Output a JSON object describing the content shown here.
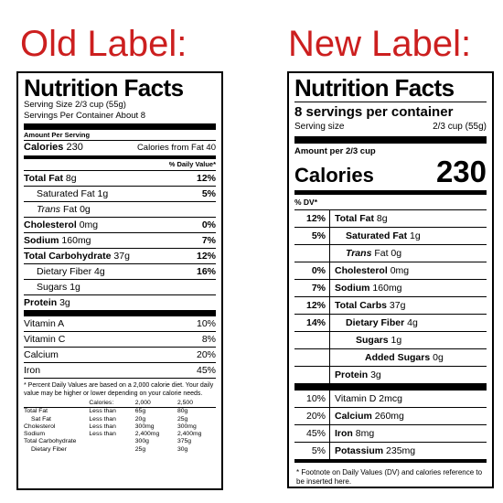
{
  "headings": {
    "old": "Old Label:",
    "new": "New Label:"
  },
  "colors": {
    "heading": "#cc1f1f"
  },
  "old_label": {
    "title": "Nutrition Facts",
    "serving_size": "Serving Size 2/3 cup (55g)",
    "servings_per_container": "Servings Per Container About 8",
    "amount_per_serving": "Amount Per Serving",
    "calories_label": "Calories",
    "calories_value": "230",
    "calories_from_fat": "Calories from Fat 40",
    "daily_value_header": "% Daily Value*",
    "nutrients": [
      {
        "name": "Total Fat",
        "amount": "8g",
        "dv": "12%"
      },
      {
        "name": "Saturated Fat",
        "amount": "1g",
        "dv": "5%"
      },
      {
        "name": "Trans",
        "amount": "Fat 0g",
        "dv": ""
      },
      {
        "name": "Cholesterol",
        "amount": "0mg",
        "dv": "0%"
      },
      {
        "name": "Sodium",
        "amount": "160mg",
        "dv": "7%"
      },
      {
        "name": "Total Carbohydrate",
        "amount": "37g",
        "dv": "12%"
      },
      {
        "name": "Dietary Fiber",
        "amount": "4g",
        "dv": "16%"
      },
      {
        "name": "Sugars",
        "amount": "1g",
        "dv": ""
      },
      {
        "name": "Protein",
        "amount": "3g",
        "dv": ""
      }
    ],
    "vitamins": [
      {
        "name": "Vitamin A",
        "dv": "10%"
      },
      {
        "name": "Vitamin C",
        "dv": "8%"
      },
      {
        "name": "Calcium",
        "dv": "20%"
      },
      {
        "name": "Iron",
        "dv": "45%"
      }
    ],
    "footnote": "* Percent Daily Values are based on a 2,000 calorie diet. Your daily value may be higher or lower depending on your calorie needs.",
    "footnote_table": {
      "header": [
        "",
        "Calories:",
        "2,000",
        "2,500"
      ],
      "rows": [
        [
          "Total Fat",
          "Less than",
          "65g",
          "80g"
        ],
        [
          "Sat Fat",
          "Less than",
          "20g",
          "25g"
        ],
        [
          "Cholesterol",
          "Less than",
          "300mg",
          "300mg"
        ],
        [
          "Sodium",
          "Less than",
          "2,400mg",
          "2,400mg"
        ],
        [
          "Total Carbohydrate",
          "",
          "300g",
          "375g"
        ],
        [
          "Dietary Fiber",
          "",
          "25g",
          "30g"
        ]
      ]
    }
  },
  "new_label": {
    "title": "Nutrition Facts",
    "servings": "8 servings per container",
    "serving_size_label": "Serving size",
    "serving_size_value": "2/3 cup (55g)",
    "amount_per": "Amount per 2/3 cup",
    "calories_label": "Calories",
    "calories_value": "230",
    "dv_header": "% DV*",
    "nutrients": [
      {
        "dv": "12%",
        "name": "Total Fat",
        "amount": "8g"
      },
      {
        "dv": "5%",
        "name": "Saturated Fat",
        "amount": "1g"
      },
      {
        "dv": "",
        "name": "Trans",
        "amount": "Fat 0g"
      },
      {
        "dv": "0%",
        "name": "Cholesterol",
        "amount": "0mg"
      },
      {
        "dv": "7%",
        "name": "Sodium",
        "amount": "160mg"
      },
      {
        "dv": "12%",
        "name": "Total Carbs",
        "amount": "37g"
      },
      {
        "dv": "14%",
        "name": "Dietary Fiber",
        "amount": "4g"
      },
      {
        "dv": "",
        "name": "Sugars",
        "amount": "1g"
      },
      {
        "dv": "",
        "name": "Added Sugars",
        "amount": "0g"
      },
      {
        "dv": "",
        "name": "Protein",
        "amount": "3g"
      }
    ],
    "vitamins": [
      {
        "dv": "10%",
        "name": "Vitamin D",
        "amount": "2mcg"
      },
      {
        "dv": "20%",
        "name": "Calcium",
        "amount": "260mg"
      },
      {
        "dv": "45%",
        "name": "Iron",
        "amount": "8mg"
      },
      {
        "dv": "5%",
        "name": "Potassium",
        "amount": "235mg"
      }
    ],
    "footnote": "* Footnote on Daily Values (DV) and calories reference to be inserted here."
  }
}
